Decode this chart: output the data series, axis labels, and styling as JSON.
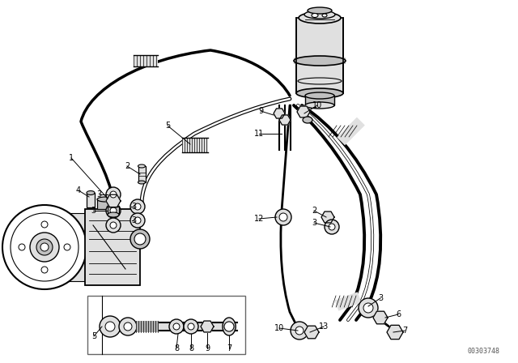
{
  "background_color": "#ffffff",
  "diagram_id": "00303748",
  "line_color": "#000000",
  "label_color": "#000000",
  "label_fontsize": 7,
  "watermark_color": "#555555",
  "watermark_fontsize": 6,
  "hose_color": "#000000",
  "fill_light": "#e0e0e0",
  "fill_mid": "#c0c0c0",
  "fill_dark": "#a0a0a0"
}
